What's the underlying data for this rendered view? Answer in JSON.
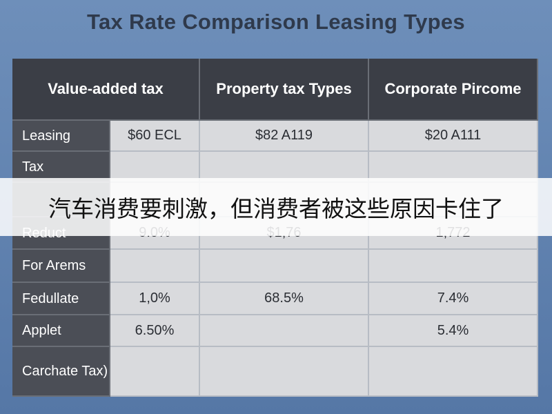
{
  "title": "Tax Rate Comparison Leasing Types",
  "table": {
    "header": [
      "Value-added tax",
      "Property tax Types",
      "Corporate Pircome"
    ],
    "rows": [
      {
        "label": "Leasing",
        "cells": [
          "$60 ECL",
          "$82 A119",
          "$20 A111"
        ]
      },
      {
        "label": "Tax",
        "cells": [
          null,
          null,
          null
        ]
      },
      {
        "label": null,
        "cells": [
          null,
          null,
          null
        ]
      },
      {
        "label": "Reduct",
        "cells": [
          "9.0%",
          "$1,76",
          "1,772"
        ]
      },
      {
        "label": "For Arems",
        "cells": [
          null,
          null,
          null
        ]
      },
      {
        "label": "Fedullate",
        "cells": [
          "1,0%",
          "68.5%",
          "7.4%"
        ]
      },
      {
        "label": "Applet",
        "cells": [
          "6.50%",
          null,
          "5.4%"
        ]
      },
      {
        "label": "Carchate Tax)",
        "cells": [
          null,
          null,
          null
        ]
      }
    ]
  },
  "caption": "汽车消费要刺激，但消费者被这些原因卡住了"
}
